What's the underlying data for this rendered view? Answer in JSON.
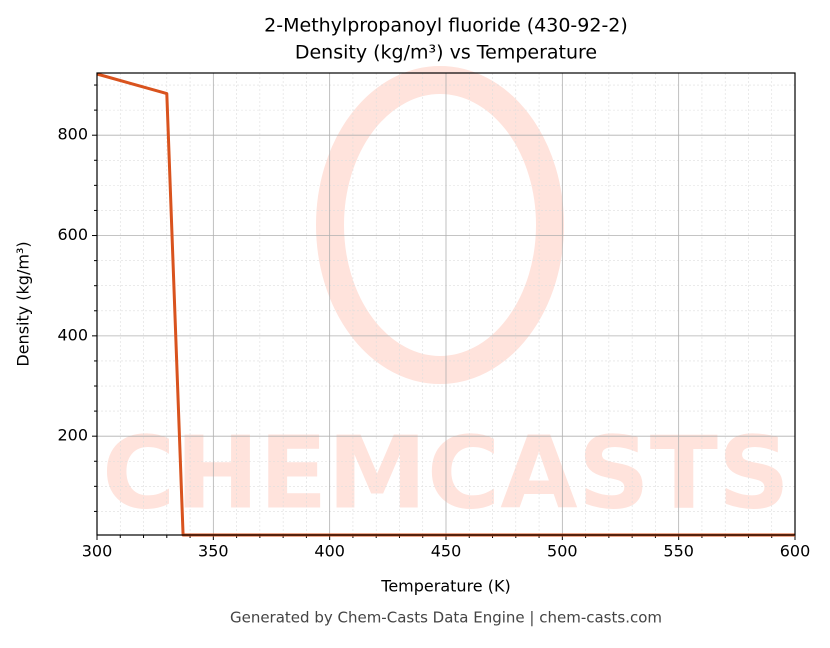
{
  "chart_data": {
    "type": "line",
    "title": "2-Methylpropanoyl fluoride (430-92-2)",
    "subtitle": "Density (kg/m³) vs Temperature",
    "x_label": "Temperature (K)",
    "y_label": "Density (kg/m³)",
    "footer": "Generated by Chem-Casts Data Engine | chem-casts.com",
    "watermark": "CHEMCASTS",
    "x": [
      300,
      330,
      337,
      350,
      400,
      450,
      500,
      550,
      600
    ],
    "series": [
      {
        "name": "Density",
        "color": "#d9531e",
        "values": [
          922,
          883,
          3,
          3,
          3,
          3,
          3,
          3,
          3
        ]
      }
    ],
    "xlim": [
      300,
      600
    ],
    "ylim": [
      3,
      924
    ],
    "xticks": [
      300,
      350,
      400,
      450,
      500,
      550,
      600
    ],
    "yticks": [
      200,
      400,
      600,
      800
    ],
    "xminorticks": [
      310,
      320,
      330,
      340,
      360,
      370,
      380,
      390,
      410,
      420,
      430,
      440,
      460,
      470,
      480,
      490,
      510,
      520,
      530,
      540,
      560,
      570,
      580,
      590
    ],
    "yminorticks": [
      50,
      100,
      150,
      250,
      300,
      350,
      450,
      500,
      550,
      650,
      700,
      750,
      850,
      900
    ],
    "grid": true
  }
}
